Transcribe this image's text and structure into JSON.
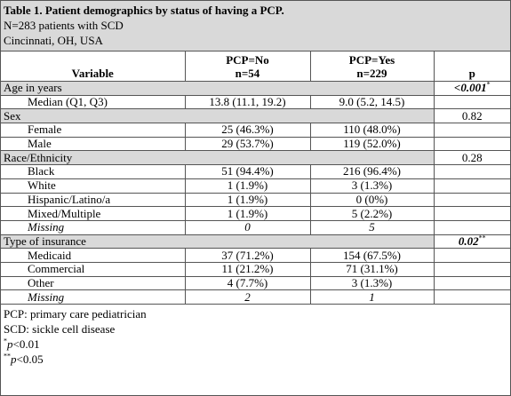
{
  "title": "Table 1. Patient demographics by status of having a PCP.",
  "subtitle_lines": [
    "N=283 patients with SCD",
    "Cincinnati, OH, USA"
  ],
  "columns": [
    {
      "label": "Variable"
    },
    {
      "label": "PCP=No",
      "n": "n=54"
    },
    {
      "label": "PCP=Yes",
      "n": "n=229"
    },
    {
      "label": "p"
    }
  ],
  "rows": [
    {
      "kind": "section",
      "label": "Age in years",
      "p": "<0.001",
      "p_sup": "*",
      "p_emphasis": true
    },
    {
      "kind": "data",
      "label": "Median (Q1, Q3)",
      "no": "13.8 (11.1, 19.2)",
      "yes": "9.0 (5.2, 14.5)"
    },
    {
      "kind": "section",
      "label": "Sex",
      "p": "0.82"
    },
    {
      "kind": "data",
      "label": "Female",
      "no": "25 (46.3%)",
      "yes": "110 (48.0%)"
    },
    {
      "kind": "data",
      "label": "Male",
      "no": "29 (53.7%)",
      "yes": "119 (52.0%)"
    },
    {
      "kind": "section",
      "label": "Race/Ethnicity",
      "p": "0.28"
    },
    {
      "kind": "data",
      "label": "Black",
      "no": "51 (94.4%)",
      "yes": "216 (96.4%)"
    },
    {
      "kind": "data",
      "label": "White",
      "no": "1 (1.9%)",
      "yes": "3 (1.3%)"
    },
    {
      "kind": "data",
      "label": "Hispanic/Latino/a",
      "no": "1 (1.9%)",
      "yes": "0 (0%)"
    },
    {
      "kind": "data",
      "label": "Mixed/Multiple",
      "no": "1 (1.9%)",
      "yes": "5 (2.2%)"
    },
    {
      "kind": "missing",
      "label": "Missing",
      "no": "0",
      "yes": "5"
    },
    {
      "kind": "section",
      "label": "Type of insurance",
      "p": "0.02",
      "p_sup": "**",
      "p_emphasis": true
    },
    {
      "kind": "data",
      "label": "Medicaid",
      "no": "37 (71.2%)",
      "yes": "154 (67.5%)"
    },
    {
      "kind": "data",
      "label": "Commercial",
      "no": "11 (21.2%)",
      "yes": "71 (31.1%)"
    },
    {
      "kind": "data",
      "label": "Other",
      "no": "4 (7.7%)",
      "yes": "3 (1.3%)"
    },
    {
      "kind": "missing",
      "label": "Missing",
      "no": "2",
      "yes": "1"
    }
  ],
  "footnotes": [
    {
      "text": "PCP: primary care pediatrician"
    },
    {
      "text": "SCD: sickle cell disease"
    },
    {
      "sup": "*",
      "italic": "p",
      "text": "<0.01"
    },
    {
      "sup": "**",
      "italic": "p",
      "text": "<0.05"
    }
  ]
}
